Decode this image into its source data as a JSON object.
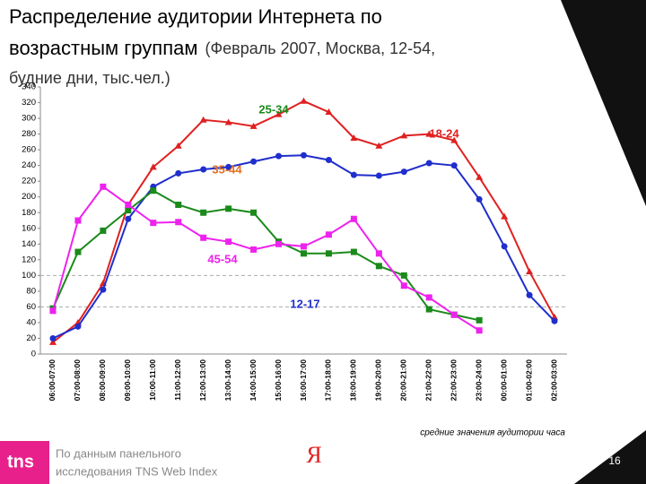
{
  "chart_data": {
    "type": "line",
    "title": "Распределение аудитории Интернета по",
    "title_line2": "возрастным группам",
    "subtitle": "(Февраль 2007, Москва, 12-54,",
    "subtitle_line2": "будние дни, тыс.чел.)",
    "categories": [
      "06:00-07:00",
      "07:00-08:00",
      "08:00-09:00",
      "09:00-10:00",
      "10:00-11:00",
      "11:00-12:00",
      "12:00-13:00",
      "13:00-14:00",
      "14:00-15:00",
      "15:00-16:00",
      "16:00-17:00",
      "17:00-18:00",
      "18:00-19:00",
      "19:00-20:00",
      "20:00-21:00",
      "21:00-22:00",
      "22:00-23:00",
      "23:00-24:00",
      "00:00-01:00",
      "01:00-02:00",
      "02:00-03:00"
    ],
    "series": [
      {
        "color": "#e02020",
        "marker": "triangle",
        "values": [
          15,
          40,
          90,
          190,
          238,
          265,
          298,
          295,
          290,
          305,
          322,
          308,
          275,
          265,
          278,
          280,
          272,
          225,
          175,
          105,
          47
        ]
      },
      {
        "color": "#1f2ecc",
        "marker": "circle",
        "values": [
          20,
          35,
          82,
          172,
          213,
          230,
          235,
          238,
          245,
          252,
          253,
          247,
          228,
          227,
          232,
          243,
          240,
          197,
          137,
          75,
          42
        ]
      },
      {
        "color": "#1a8a1a",
        "marker": "square",
        "values": [
          58,
          130,
          157,
          183,
          208,
          190,
          180,
          185,
          180,
          143,
          128,
          128,
          130,
          112,
          100,
          57,
          50,
          43,
          null,
          null,
          null
        ]
      },
      {
        "color": "#ee22ee",
        "marker": "square",
        "values": [
          55,
          170,
          213,
          190,
          167,
          168,
          148,
          143,
          133,
          140,
          137,
          152,
          172,
          128,
          87,
          72,
          50,
          30,
          null,
          null,
          null
        ]
      }
    ],
    "annotations": [
      {
        "text": "25-34",
        "color": "#1a8a1a"
      },
      {
        "text": "18-24",
        "color": "#e02020"
      },
      {
        "text": "35-44",
        "color": "#e07020"
      },
      {
        "text": "45-54",
        "color": "#ee22ee"
      },
      {
        "text": "12-17",
        "color": "#1f2ecc"
      }
    ],
    "ylim": [
      0,
      340
    ],
    "yticks": [
      0,
      20,
      40,
      60,
      80,
      100,
      120,
      140,
      160,
      180,
      200,
      220,
      240,
      260,
      280,
      300,
      320,
      340
    ],
    "reference_lines": [
      60,
      100
    ],
    "note": "средние значения аудитории часа"
  },
  "footer": {
    "source_line1": "По данным панельного",
    "source_line2": "исследования TNS Web Index",
    "logo": "tns",
    "brand": "Я",
    "page": "16"
  }
}
